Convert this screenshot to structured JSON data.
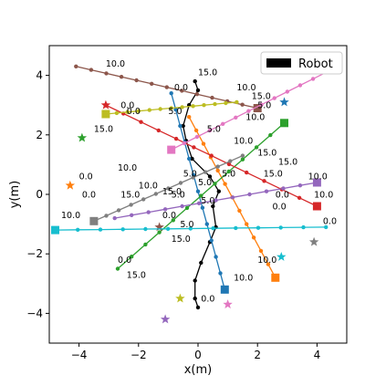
{
  "chart_data": {
    "type": "line",
    "title": "",
    "xlabel": "x(m)",
    "ylabel": "y(m)",
    "xlim": [
      -5,
      5
    ],
    "ylim": [
      -5,
      5
    ],
    "xticks": [
      -4,
      -2,
      0,
      2,
      4
    ],
    "xtick_labels": [
      "−4",
      "−2",
      "0",
      "2",
      "4"
    ],
    "yticks": [
      -4,
      -2,
      0,
      2,
      4
    ],
    "ytick_labels": [
      "−4",
      "−2",
      "0",
      "2",
      "4"
    ],
    "grid": false,
    "legend": {
      "position": "top-right",
      "entries": [
        {
          "label": "Robot",
          "color": "#000000"
        }
      ]
    },
    "series": [
      {
        "color": "#000000",
        "role": "robot",
        "points": [
          [
            -0.1,
            3.8
          ],
          [
            0,
            3.5
          ],
          [
            -0.3,
            3.0
          ],
          [
            -0.5,
            2.3
          ],
          [
            -0.4,
            1.8
          ],
          [
            -0.2,
            1.2
          ],
          [
            0.4,
            0.6
          ],
          [
            0.7,
            0.1
          ],
          [
            0.5,
            -0.4
          ],
          [
            0.6,
            -1.1
          ],
          [
            0.4,
            -1.6
          ],
          [
            0.1,
            -2.3
          ],
          [
            -0.1,
            -2.9
          ],
          [
            -0.1,
            -3.5
          ],
          [
            0,
            -3.8
          ]
        ]
      },
      {
        "color": "#1f77b4",
        "start": [
          -0.9,
          3.4
        ],
        "end": [
          0.9,
          -3.2
        ],
        "marker": "square",
        "goal": [
          2.9,
          3.1
        ],
        "goal_marker": "star"
      },
      {
        "color": "#ff7f0e",
        "start": [
          -0.3,
          2.6
        ],
        "end": [
          2.6,
          -2.8
        ],
        "marker": "square",
        "goal": [
          -4.3,
          0.3
        ],
        "goal_marker": "star"
      },
      {
        "color": "#2ca02c",
        "start": [
          -2.7,
          -2.5
        ],
        "end": [
          2.9,
          2.4
        ],
        "marker": "square",
        "goal": [
          -3.9,
          1.9
        ],
        "goal_marker": "star"
      },
      {
        "color": "#d62728",
        "start": [
          -3.1,
          3.0
        ],
        "end": [
          4.0,
          -0.4
        ],
        "marker": "square",
        "goal": [
          -3.1,
          3.0
        ],
        "goal_marker": "star"
      },
      {
        "color": "#9467bd",
        "start": [
          -2.8,
          -0.8
        ],
        "end": [
          4.0,
          0.4
        ],
        "marker": "square",
        "goal": [
          -1.1,
          -4.2
        ],
        "goal_marker": "star"
      },
      {
        "color": "#8c564b",
        "start": [
          -4.1,
          4.3
        ],
        "end": [
          2.0,
          2.9
        ],
        "marker": "square",
        "goal": [
          -1.3,
          -1.1
        ],
        "goal_marker": "star"
      },
      {
        "color": "#e377c2",
        "start": [
          4.3,
          4.1
        ],
        "end": [
          -0.9,
          1.5
        ],
        "marker": "square",
        "goal": [
          1.0,
          -3.7
        ],
        "goal_marker": "star"
      },
      {
        "color": "#7f7f7f",
        "start": [
          1.5,
          1.3
        ],
        "end": [
          -3.5,
          -0.9
        ],
        "marker": "square",
        "goal": [
          3.9,
          -1.6
        ],
        "goal_marker": "star"
      },
      {
        "color": "#bcbd22",
        "start": [
          1.3,
          3.1
        ],
        "end": [
          -3.1,
          2.7
        ],
        "marker": "square",
        "goal": [
          -0.6,
          -3.5
        ],
        "goal_marker": "star"
      },
      {
        "color": "#17becf",
        "start": [
          4.3,
          -1.1
        ],
        "end": [
          -4.8,
          -1.2
        ],
        "marker": "square",
        "goal": [
          2.8,
          -2.1
        ],
        "goal_marker": "star"
      }
    ],
    "annotations": [
      {
        "text": "10.0",
        "x": -3.1,
        "y": 4.3
      },
      {
        "text": "15.0",
        "x": 0.0,
        "y": 4.0
      },
      {
        "text": "0.0",
        "x": -0.8,
        "y": 3.5
      },
      {
        "text": "10.0",
        "x": 1.3,
        "y": 3.5
      },
      {
        "text": "15.0",
        "x": 1.8,
        "y": 3.2
      },
      {
        "text": "5.0",
        "x": 2.0,
        "y": 2.9
      },
      {
        "text": "0.0",
        "x": -2.6,
        "y": 2.9
      },
      {
        "text": "0.0",
        "x": -2.4,
        "y": 2.7
      },
      {
        "text": "5.0",
        "x": -1.0,
        "y": 2.7
      },
      {
        "text": "10.0",
        "x": 1.6,
        "y": 2.5
      },
      {
        "text": "5.0",
        "x": 0.3,
        "y": 2.1
      },
      {
        "text": "15.0",
        "x": -3.5,
        "y": 2.1
      },
      {
        "text": "10.0",
        "x": 1.2,
        "y": 1.7
      },
      {
        "text": "15.0",
        "x": 2.0,
        "y": 1.3
      },
      {
        "text": "15.0",
        "x": 2.7,
        "y": 1.0
      },
      {
        "text": "10.0",
        "x": -2.7,
        "y": 0.8
      },
      {
        "text": "5.0",
        "x": -0.5,
        "y": 0.6
      },
      {
        "text": "5.0",
        "x": 0.8,
        "y": 0.6
      },
      {
        "text": "15.0",
        "x": 2.2,
        "y": 0.6
      },
      {
        "text": "10.0",
        "x": 3.7,
        "y": 0.5
      },
      {
        "text": "0.0",
        "x": -4.0,
        "y": 0.5
      },
      {
        "text": "5.0",
        "x": 0.0,
        "y": 0.3
      },
      {
        "text": "10.0",
        "x": -2.0,
        "y": 0.2
      },
      {
        "text": "15.0",
        "x": -1.2,
        "y": 0.0
      },
      {
        "text": "5.0",
        "x": -0.9,
        "y": -0.1
      },
      {
        "text": "0.0",
        "x": 2.6,
        "y": -0.1
      },
      {
        "text": "10.0",
        "x": 3.9,
        "y": -0.1
      },
      {
        "text": "0.0",
        "x": -3.9,
        "y": -0.1
      },
      {
        "text": "15.0",
        "x": -2.6,
        "y": -0.1
      },
      {
        "text": "5.0",
        "x": 0.1,
        "y": -0.3
      },
      {
        "text": "0.0",
        "x": 2.5,
        "y": -0.5
      },
      {
        "text": "10.0",
        "x": -4.6,
        "y": -0.8
      },
      {
        "text": "0.0",
        "x": -1.2,
        "y": -0.8
      },
      {
        "text": "5.0",
        "x": -0.6,
        "y": -1.1
      },
      {
        "text": "15.0",
        "x": -0.9,
        "y": -1.6
      },
      {
        "text": "0.0",
        "x": 4.2,
        "y": -1.0
      },
      {
        "text": "10.0",
        "x": 2.0,
        "y": -2.3
      },
      {
        "text": "0.0",
        "x": -2.7,
        "y": -2.3
      },
      {
        "text": "15.0",
        "x": -2.4,
        "y": -2.8
      },
      {
        "text": "10.0",
        "x": 1.2,
        "y": -2.9
      },
      {
        "text": "0.0",
        "x": 0.1,
        "y": -3.6
      }
    ]
  }
}
